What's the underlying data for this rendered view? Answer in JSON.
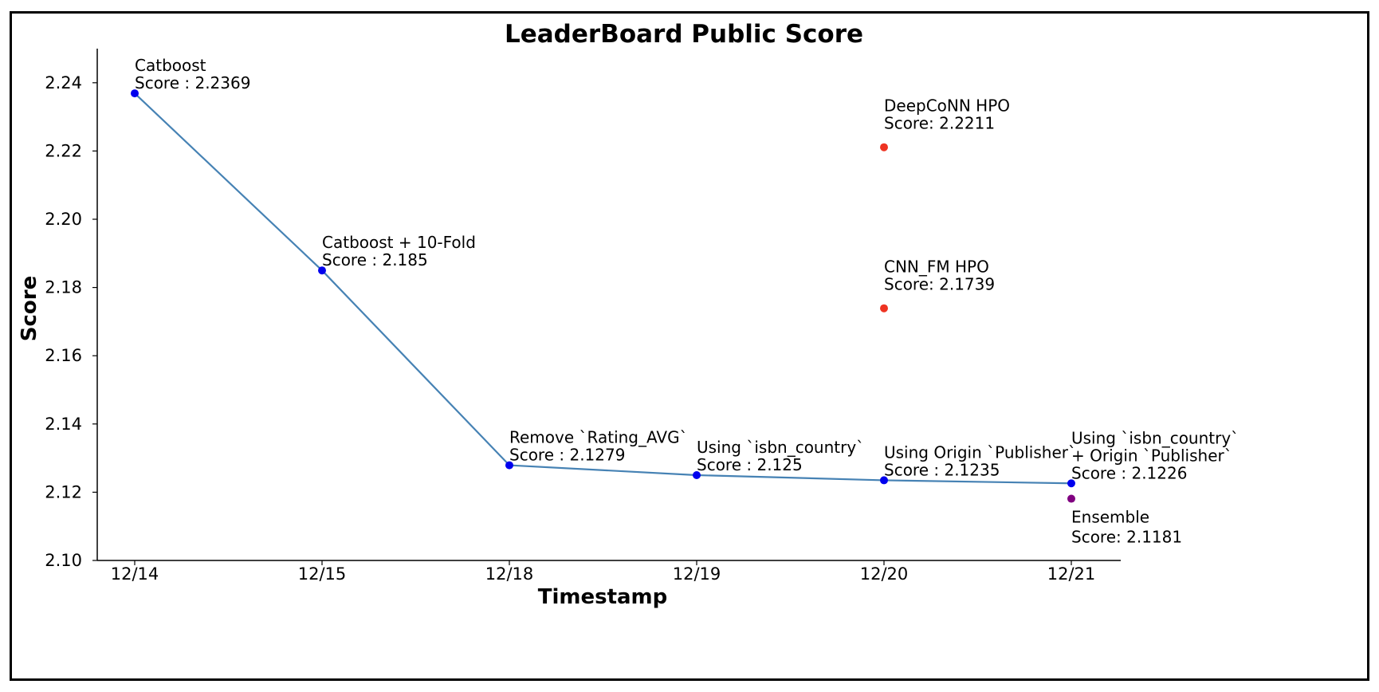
{
  "chart_data": {
    "type": "line",
    "title": "LeaderBoard Public Score",
    "xlabel": "Timestamp",
    "ylabel": "Score",
    "categories": [
      "12/14",
      "12/15",
      "12/18",
      "12/19",
      "12/20",
      "12/21"
    ],
    "ylim": [
      2.1,
      2.25
    ],
    "yticks": [
      "2.10",
      "2.12",
      "2.14",
      "2.16",
      "2.18",
      "2.20",
      "2.22",
      "2.24"
    ],
    "grid": false,
    "legend": "none",
    "series": [
      {
        "color": "#4682b4",
        "marker_color": "#0000ee",
        "values": [
          2.2369,
          2.185,
          2.1279,
          2.125,
          2.1235,
          2.1226
        ],
        "annotations": [
          [
            "Catboost",
            "Score : 2.2369"
          ],
          [
            "Catboost + 10-Fold",
            "Score : 2.185"
          ],
          [
            "Remove `Rating_AVG`",
            "Score : 2.1279"
          ],
          [
            "Using `isbn_country`",
            "Score : 2.125"
          ],
          [
            "Using Origin `Publisher`",
            "Score : 2.1235"
          ],
          [
            "Using `isbn_country`",
            "+ Origin `Publisher`",
            "Score : 2.1226"
          ]
        ]
      }
    ],
    "extra_points": [
      {
        "category": "12/20",
        "value": 2.2211,
        "color": "#ee3322",
        "annotation": [
          "DeepCoNN HPO",
          "Score: 2.2211"
        ]
      },
      {
        "category": "12/20",
        "value": 2.1739,
        "color": "#ee3322",
        "annotation": [
          "CNN_FM HPO",
          "Score: 2.1739"
        ]
      },
      {
        "category": "12/21",
        "value": 2.1181,
        "color": "#800080",
        "annotation": [
          "Ensemble",
          "Score: 2.1181"
        ]
      }
    ]
  }
}
